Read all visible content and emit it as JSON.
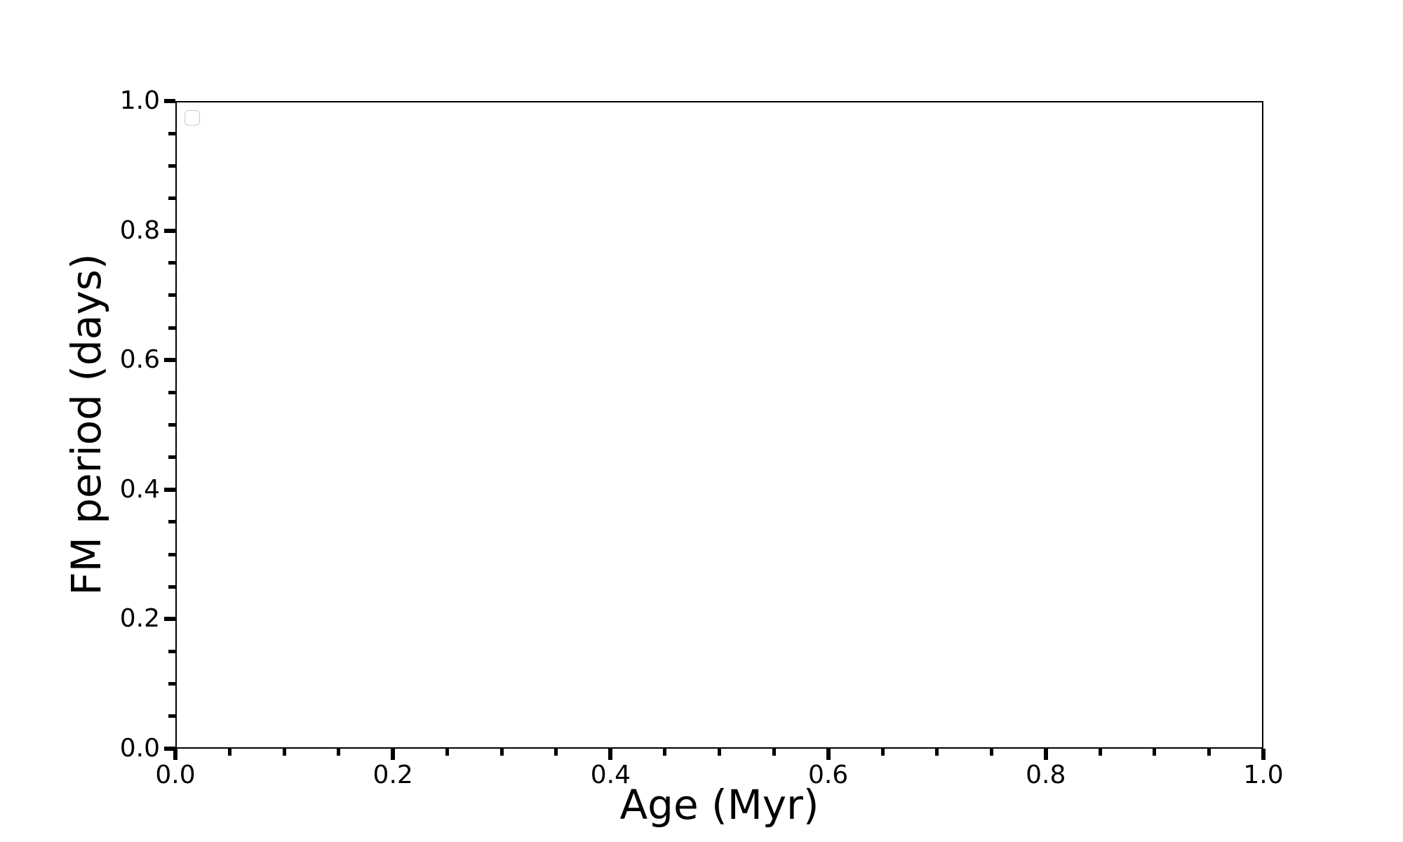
{
  "chart_data": {
    "type": "scatter",
    "title": "",
    "xlabel": "Age (Myr)",
    "ylabel": "FM period (days)",
    "xlim": [
      0.0,
      1.0
    ],
    "ylim": [
      0.0,
      1.0
    ],
    "x_ticks": [
      0.0,
      0.2,
      0.4,
      0.6,
      0.8,
      1.0
    ],
    "x_tick_labels": [
      "0.0",
      "0.2",
      "0.4",
      "0.6",
      "0.8",
      "1.0"
    ],
    "y_ticks": [
      0.0,
      0.2,
      0.4,
      0.6,
      0.8,
      1.0
    ],
    "y_tick_labels": [
      "0.0",
      "0.2",
      "0.4",
      "0.6",
      "0.8",
      "1.0"
    ],
    "minor_ticks_per_interval": 3,
    "grid": false,
    "series": [],
    "legend": {
      "visible": true,
      "entries": [],
      "position": "upper left"
    },
    "colors": {
      "background": "#ffffff",
      "axis": "#000000",
      "legend_border": "#cccccc"
    }
  }
}
